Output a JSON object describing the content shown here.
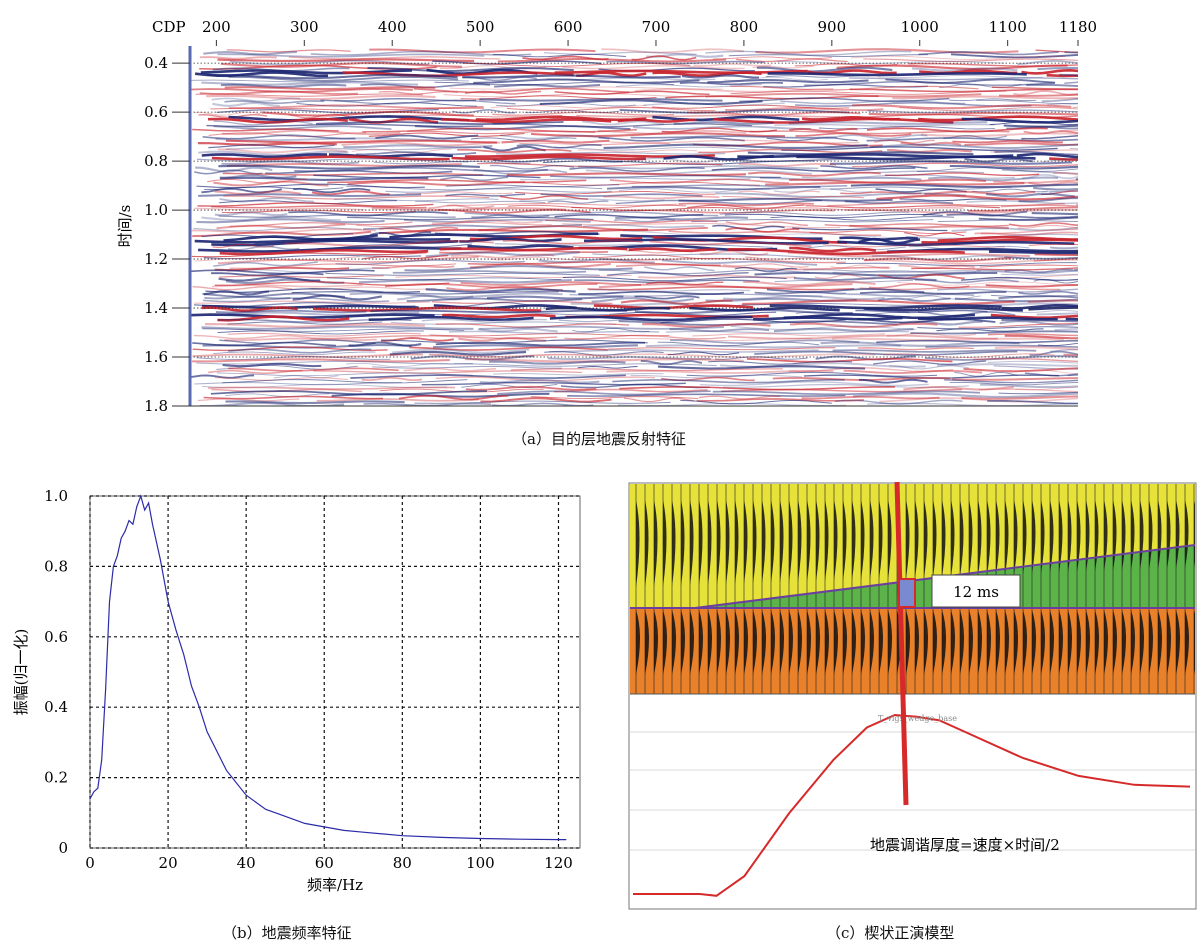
{
  "panel_a": {
    "caption": "（a）目的层地震反射特征",
    "top_axis_label": "CDP",
    "top_ticks": [
      "200",
      "300",
      "400",
      "500",
      "600",
      "700",
      "800",
      "900",
      "1000",
      "1100",
      "1180"
    ],
    "y_label": "时间/s",
    "y_ticks": [
      "0.4",
      "0.6",
      "0.8",
      "1.0",
      "1.2",
      "1.4",
      "1.6",
      "1.8"
    ],
    "colors": {
      "positive": "#c8202a",
      "negative": "#1a2470",
      "grid": "#333333"
    }
  },
  "panel_b": {
    "caption": "（b）地震频率特征",
    "x_label": "频率/Hz",
    "y_label": "振幅(归一化)",
    "x_ticks": [
      "0",
      "20",
      "40",
      "60",
      "80",
      "100",
      "120"
    ],
    "y_ticks": [
      "0",
      "0.2",
      "0.4",
      "0.6",
      "0.8",
      "1.0"
    ],
    "line_color": "#2b2ba8"
  },
  "panel_c": {
    "caption": "（c）楔状正演模型",
    "annotation": "12 ms",
    "formula": "地震调谐厚度=速度×时间/2",
    "curve_label": "T_vigs_wedge_base",
    "colors": {
      "upper": "#e6e23a",
      "wedge": "#5bb34a",
      "lower": "#e9802a",
      "marker": "#d62a2a",
      "horizon": "#6b3fa0"
    }
  },
  "chart_data": [
    {
      "type": "heatmap",
      "title": "",
      "x_axis": "CDP",
      "x_ticks": [
        200,
        300,
        400,
        500,
        600,
        700,
        800,
        900,
        1000,
        1100,
        1180
      ],
      "xlim": [
        170,
        1180
      ],
      "ylabel": "时间/s",
      "y_ticks": [
        0.4,
        0.6,
        0.8,
        1.0,
        1.2,
        1.4,
        1.6,
        1.8
      ],
      "ylim": [
        0.33,
        1.8
      ],
      "grid": true,
      "strong_reflectors_s": [
        0.44,
        0.63,
        0.78,
        1.12,
        1.16,
        1.4,
        1.44
      ]
    },
    {
      "type": "line",
      "title": "",
      "xlabel": "频率/Hz",
      "ylabel": "振幅(归一化)",
      "xlim": [
        0,
        125
      ],
      "ylim": [
        0,
        1.0
      ],
      "grid": true,
      "x": [
        0,
        1,
        2,
        3,
        4,
        5,
        6,
        7,
        8,
        9,
        10,
        11,
        12,
        13,
        14,
        15,
        16,
        18,
        20,
        22,
        24,
        26,
        28,
        30,
        35,
        40,
        45,
        50,
        55,
        60,
        65,
        70,
        80,
        90,
        100,
        110,
        120,
        122
      ],
      "y": [
        0.14,
        0.16,
        0.17,
        0.25,
        0.45,
        0.7,
        0.8,
        0.83,
        0.88,
        0.9,
        0.93,
        0.92,
        0.97,
        1.0,
        0.96,
        0.98,
        0.92,
        0.82,
        0.7,
        0.62,
        0.55,
        0.46,
        0.4,
        0.33,
        0.22,
        0.15,
        0.11,
        0.09,
        0.07,
        0.06,
        0.05,
        0.045,
        0.035,
        0.03,
        0.027,
        0.025,
        0.024,
        0.024
      ]
    },
    {
      "type": "line",
      "title": "",
      "series": [
        {
          "name": "T_vigs_wedge_base",
          "x": [
            0,
            0.12,
            0.15,
            0.2,
            0.28,
            0.36,
            0.42,
            0.47,
            0.51,
            0.55,
            0.6,
            0.7,
            0.8,
            0.9,
            1.0
          ],
          "y": [
            0.0,
            0.0,
            -0.01,
            0.1,
            0.45,
            0.75,
            0.93,
            1.0,
            0.99,
            0.97,
            0.9,
            0.76,
            0.66,
            0.61,
            0.6
          ]
        }
      ],
      "tuning_marker_x": 0.47
    }
  ]
}
